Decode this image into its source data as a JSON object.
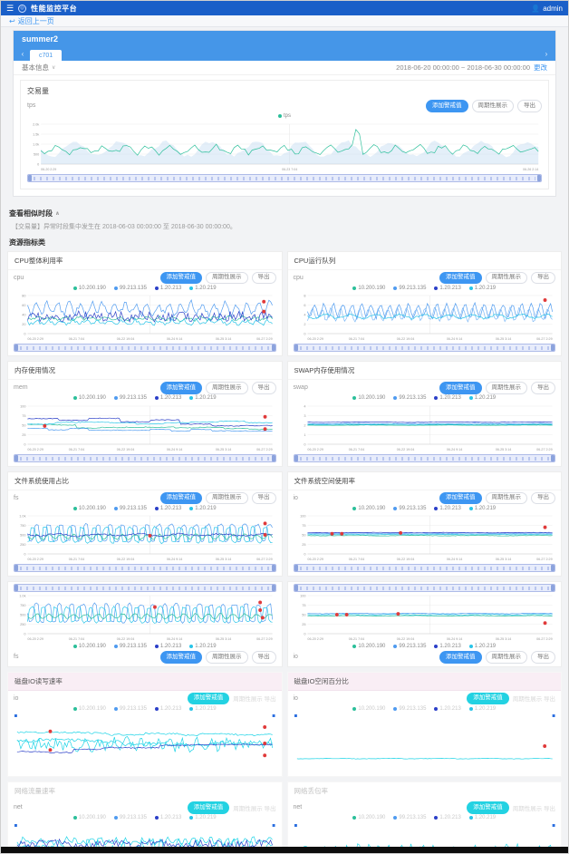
{
  "navbar": {
    "title": "性能监控平台",
    "user": "admin"
  },
  "icons": {
    "menu": "☰",
    "user": "👤",
    "back": "↩",
    "caret_down": "∨",
    "caret_up": "∧",
    "chev_left": "‹",
    "chev_right": "›",
    "logo": "◎"
  },
  "back_link": "返回上一页",
  "panel": {
    "name": "summer2",
    "tab": "c701"
  },
  "info": {
    "label": "基本信息",
    "date_range": "2018-06-20 00:00:00 ~ 2018-06-30 00:00:00",
    "change_link": "更改"
  },
  "buttons": {
    "add_alert": "添加警戒值",
    "periodic": "周期性展示",
    "export": "导出"
  },
  "section": {
    "title": "查看相似时段",
    "desc": "【交易量】异常时段集中发生在 2018-06-03 00:00:00 至 2018-06-30 00:00:00。",
    "subtitle": "资源指标类"
  },
  "legend_hosts": [
    "10.200.190",
    "99.213.135",
    "1.20.213",
    "1.20.219"
  ],
  "host_colors": [
    "#2bbf9a",
    "#4f9bf0",
    "#2b3fc8",
    "#28c5e8"
  ],
  "red_color": "#e03a3a",
  "big_chart": {
    "title": "交易量",
    "sub": "tps",
    "legend": [
      {
        "label": "tps",
        "color": "#2bbf9a"
      }
    ],
    "ylabels": [
      "2.0k",
      "1.5k",
      "1.0k",
      "500",
      "0"
    ],
    "xlabels": [
      "06-20 2:29",
      "06-23 7:04",
      "06-26 2:14"
    ],
    "series": [
      {
        "color": "#bcd8f0",
        "fill": true,
        "opacity": 0.4,
        "base": 0.62,
        "amp": 0.18,
        "freq": 11,
        "noise": 0.1,
        "seed": 11
      },
      {
        "color": "#2bbf9a",
        "base": 0.64,
        "amp": 0.08,
        "freq": 22,
        "noise": 0.12,
        "seed": 5,
        "spikes": [
          {
            "x": 0.635,
            "h": 0.42,
            "w": 0.006
          }
        ]
      }
    ],
    "red": []
  },
  "charts_grid": [
    {
      "title": "CPU整体利用率",
      "sub": "cpu",
      "layout": "normal",
      "btn": "blue",
      "ylabels": [
        "80",
        "60",
        "40",
        "20",
        "0"
      ],
      "xlabels": [
        "06-20 2:29",
        "06-21 7:04",
        "06-22 19:04",
        "06-24 9:14",
        "06-25 3:14",
        "06-27 2:29"
      ],
      "series": [
        {
          "color": "#4f9bf0",
          "base": 0.34,
          "amp": 0.14,
          "freq": 22,
          "noise": 0.18,
          "seed": 7
        },
        {
          "color": "#2bbf9a",
          "base": 0.6,
          "amp": 0.04,
          "freq": 18,
          "noise": 0.08,
          "seed": 3
        },
        {
          "color": "#2b3fc8",
          "base": 0.55,
          "amp": 0.02,
          "freq": 8,
          "noise": 0.26,
          "seed": 4
        },
        {
          "color": "#28c5e8",
          "base": 0.7,
          "amp": 0.05,
          "freq": 20,
          "noise": 0.1,
          "seed": 9
        }
      ],
      "red": [
        [
          0.965,
          0.16
        ],
        [
          0.965,
          0.42
        ]
      ]
    },
    {
      "title": "CPU运行队列",
      "sub": "cpu",
      "layout": "normal",
      "btn": "blue",
      "ylabels": [
        "8",
        "6",
        "4",
        "2",
        "0"
      ],
      "xlabels": [
        "06-20 2:29",
        "06-21 7:04",
        "06-22 19:04",
        "06-24 9:14",
        "06-25 3:14",
        "06-27 2:29"
      ],
      "series": [
        {
          "color": "#4f9bf0",
          "base": 0.4,
          "amp": 0.18,
          "freq": 26,
          "noise": 0.08,
          "seed": 2
        },
        {
          "color": "#7db8f5",
          "base": 0.5,
          "amp": 0.16,
          "freq": 26,
          "phase": 1.5,
          "noise": 0.08,
          "seed": 6
        },
        {
          "color": "#28c5e8",
          "base": 0.55,
          "amp": 0.05,
          "freq": 10,
          "noise": 0.05,
          "seed": 8
        }
      ],
      "red": [
        [
          0.97,
          0.12
        ]
      ]
    },
    {
      "title": "内存使用情况",
      "sub": "mem",
      "layout": "normal",
      "btn": "blue",
      "ylabels": [
        "100",
        "75",
        "50",
        "25",
        "0"
      ],
      "xlabels": [
        "06-20 2:29",
        "06-21 7:04",
        "06-22 19:04",
        "06-24 9:14",
        "06-25 3:14",
        "06-27 2:29"
      ],
      "series": [
        {
          "color": "#2b3fc8",
          "step": true,
          "segs": 8,
          "base": 0.3,
          "trend": 0.25,
          "amp": 0.15,
          "noise": 0.02,
          "seed": 5
        },
        {
          "color": "#2bbf9a",
          "step": true,
          "segs": 10,
          "base": 0.52,
          "trend": 0.08,
          "amp": 0.08,
          "noise": 0.02,
          "seed": 7
        },
        {
          "color": "#28c5e8",
          "step": true,
          "segs": 9,
          "base": 0.45,
          "trend": -0.05,
          "amp": 0.1,
          "noise": 0.02,
          "seed": 2
        },
        {
          "color": "#4f9bf0",
          "step": true,
          "segs": 12,
          "base": 0.6,
          "trend": 0.05,
          "amp": 0.06,
          "noise": 0.02,
          "seed": 9
        }
      ],
      "red": [
        [
          0.07,
          0.52
        ],
        [
          0.97,
          0.28
        ],
        [
          0.97,
          0.6
        ]
      ]
    },
    {
      "title": "SWAP内存使用情况",
      "sub": "swap",
      "layout": "normal",
      "btn": "blue",
      "ylabels": [
        "4",
        "3",
        "2",
        "1",
        "0"
      ],
      "xlabels": [
        "06-20 2:29",
        "06-21 7:04",
        "06-22 19:04",
        "06-24 9:14",
        "06-25 3:14",
        "06-27 2:29"
      ],
      "series": [
        {
          "color": "#2b3fc8",
          "base": 0.42,
          "amp": 0.005,
          "freq": 3,
          "noise": 0.01,
          "seed": 1
        },
        {
          "color": "#4f9bf0",
          "base": 0.46,
          "amp": 0.005,
          "freq": 4,
          "noise": 0.01,
          "seed": 2
        },
        {
          "color": "#2bbf9a",
          "base": 0.5,
          "amp": 0.004,
          "freq": 3,
          "noise": 0.008,
          "seed": 3
        },
        {
          "color": "#28c5e8",
          "base": 0.48,
          "amp": 0.004,
          "freq": 5,
          "noise": 0.008,
          "seed": 4
        }
      ],
      "red": []
    },
    {
      "title": "文件系统使用占比",
      "sub": "fs",
      "layout": "normal",
      "btn": "blue",
      "ylabels": [
        "1.0k",
        "750",
        "500",
        "250",
        "0"
      ],
      "xlabels": [
        "06-20 2:29",
        "06-21 7:04",
        "06-22 19:04",
        "06-24 9:14",
        "06-25 3:14",
        "06-27 2:29"
      ],
      "series": [
        {
          "color": "#4f9bf0",
          "base": 0.45,
          "amp": 0.22,
          "freq": 20,
          "square": true,
          "noise": 0.06,
          "seed": 3
        },
        {
          "color": "#28c5e8",
          "base": 0.5,
          "amp": 0.2,
          "freq": 20,
          "phase": 2,
          "square": true,
          "noise": 0.06,
          "seed": 8
        },
        {
          "color": "#2bbf9a",
          "base": 0.55,
          "amp": 0.06,
          "freq": 20,
          "noise": 0.05,
          "seed": 1
        },
        {
          "color": "#2b3fc8",
          "base": 0.5,
          "amp": 0.03,
          "freq": 6,
          "noise": 0.04,
          "seed": 6
        }
      ],
      "red": [
        [
          0.5,
          0.52
        ],
        [
          0.97,
          0.2
        ],
        [
          0.97,
          0.5
        ]
      ]
    },
    {
      "title": "文件系统空间使用率",
      "sub": "io",
      "layout": "normal",
      "btn": "blue",
      "ylabels": [
        "100",
        "75",
        "50",
        "25",
        "0"
      ],
      "xlabels": [
        "06-20 2:29",
        "06-21 7:04",
        "06-22 19:04",
        "06-24 9:14",
        "06-25 3:14",
        "06-27 2:29"
      ],
      "series": [
        {
          "color": "#4f9bf0",
          "base": 0.46,
          "amp": 0.006,
          "freq": 4,
          "noise": 0.012,
          "seed": 4
        },
        {
          "color": "#28c5e8",
          "base": 0.49,
          "amp": 0.006,
          "freq": 5,
          "noise": 0.012,
          "seed": 5
        },
        {
          "color": "#2bbf9a",
          "base": 0.52,
          "amp": 0.005,
          "freq": 4,
          "noise": 0.01,
          "seed": 6
        },
        {
          "color": "#2b3fc8",
          "base": 0.44,
          "amp": 0.004,
          "freq": 3,
          "noise": 0.01,
          "seed": 7
        }
      ],
      "red": [
        [
          0.1,
          0.47
        ],
        [
          0.14,
          0.47
        ],
        [
          0.38,
          0.45
        ],
        [
          0.97,
          0.3
        ]
      ]
    },
    {
      "title": "",
      "sub": "fs",
      "layout": "flipped",
      "btn": "blue",
      "ylabels": [
        "1.0k",
        "750",
        "500",
        "250",
        "0"
      ],
      "xlabels": [
        "06-20 2:29",
        "06-21 7:04",
        "06-22 19:04",
        "06-24 9:14",
        "06-25 3:14",
        "06-27 2:29"
      ],
      "series": [
        {
          "color": "#4f9bf0",
          "base": 0.46,
          "amp": 0.24,
          "freq": 21,
          "square": true,
          "noise": 0.06,
          "seed": 13
        },
        {
          "color": "#28c5e8",
          "base": 0.5,
          "amp": 0.2,
          "freq": 21,
          "phase": 2.2,
          "square": true,
          "noise": 0.06,
          "seed": 18
        },
        {
          "color": "#2bbf9a",
          "base": 0.54,
          "amp": 0.06,
          "freq": 20,
          "noise": 0.05,
          "seed": 11
        }
      ],
      "red": [
        [
          0.52,
          0.3
        ],
        [
          0.95,
          0.18
        ],
        [
          0.95,
          0.38
        ],
        [
          0.96,
          0.58
        ]
      ]
    },
    {
      "title": "",
      "sub": "io",
      "layout": "flipped",
      "btn": "blue",
      "ylabels": [
        "100",
        "75",
        "50",
        "25",
        "0"
      ],
      "xlabels": [
        "06-20 2:29",
        "06-21 7:04",
        "06-22 19:04",
        "06-24 9:14",
        "06-25 3:14",
        "06-27 2:29"
      ],
      "series": [
        {
          "color": "#4f9bf0",
          "base": 0.47,
          "amp": 0.006,
          "freq": 4,
          "noise": 0.012,
          "seed": 14
        },
        {
          "color": "#28c5e8",
          "base": 0.5,
          "amp": 0.006,
          "freq": 5,
          "noise": 0.012,
          "seed": 15
        },
        {
          "color": "#2bbf9a",
          "base": 0.53,
          "amp": 0.005,
          "freq": 4,
          "noise": 0.01,
          "seed": 16
        }
      ],
      "red": [
        [
          0.12,
          0.5
        ],
        [
          0.16,
          0.5
        ],
        [
          0.37,
          0.48
        ],
        [
          0.97,
          0.72
        ]
      ]
    },
    {
      "title": "磁盘IO读写速率",
      "title_style": "pink",
      "sub": "io",
      "layout": "bare",
      "btn": "cyan",
      "ylabels": [],
      "xlabels": [],
      "series": [
        {
          "color": "#19d3e6",
          "step": true,
          "segs": 14,
          "base": 0.3,
          "trend": 0.05,
          "amp": 0.06,
          "noise": 0.03,
          "seed": 21
        },
        {
          "color": "#19d3e6",
          "step": true,
          "segs": 12,
          "base": 0.45,
          "trend": 0.1,
          "amp": 0.08,
          "noise": 0.06,
          "seed": 22
        },
        {
          "color": "#19d3e6",
          "base": 0.52,
          "amp": 0.05,
          "freq": 18,
          "noise": 0.2,
          "seed": 23
        },
        {
          "color": "#2b3fc8",
          "step": true,
          "segs": 9,
          "base": 0.66,
          "trend": -0.18,
          "amp": 0.06,
          "noise": 0.02,
          "seed": 24
        }
      ],
      "red": [
        [
          0.13,
          0.28
        ],
        [
          0.13,
          0.62
        ],
        [
          0.97,
          0.2
        ],
        [
          0.97,
          0.5
        ],
        [
          0.97,
          0.72
        ]
      ]
    },
    {
      "title": "磁盘IO空闲百分比",
      "title_style": "pink",
      "sub": "io",
      "layout": "bare",
      "btn": "cyan",
      "ylabels": [],
      "xlabels": [],
      "series": [
        {
          "color": "#19d3e6",
          "base": 0.78,
          "amp": 0.004,
          "freq": 5,
          "noise": 0.01,
          "seed": 25
        }
      ],
      "red": [
        [
          0.97,
          0.55
        ]
      ]
    },
    {
      "title": "网络流量速率",
      "title_style": "faint",
      "sub": "net",
      "layout": "bare",
      "btn": "cyan",
      "ylabels": [],
      "xlabels": [],
      "series": [
        {
          "color": "#19d3e6",
          "base": 0.28,
          "amp": 0.04,
          "freq": 30,
          "noise": 0.1,
          "seed": 31
        },
        {
          "color": "#19d3e6",
          "base": 0.4,
          "amp": 0.06,
          "freq": 28,
          "noise": 0.22,
          "seed": 32
        },
        {
          "color": "#19d3e6",
          "base": 0.55,
          "amp": 0.05,
          "freq": 26,
          "noise": 0.34,
          "seed": 33
        },
        {
          "color": "#2b3fc8",
          "base": 0.33,
          "amp": 0.02,
          "freq": 5,
          "noise": 0.14,
          "seed": 34
        }
      ],
      "red": [
        [
          0.97,
          0.5
        ],
        [
          0.95,
          0.76
        ]
      ]
    },
    {
      "title": "网络丢包率",
      "title_style": "faint",
      "sub": "net",
      "layout": "bare",
      "btn": "cyan",
      "ylabels": [],
      "xlabels": [],
      "series": [
        {
          "color": "#19d3e6",
          "base": 0.45,
          "amp": 0.07,
          "freq": 24,
          "noise": 0.12,
          "seed": 35
        },
        {
          "color": "#19d3e6",
          "base": 0.78,
          "amp": 0.01,
          "freq": 20,
          "noise": 0.03,
          "seed": 36
        }
      ],
      "red": [
        [
          0.98,
          0.6
        ]
      ]
    }
  ]
}
